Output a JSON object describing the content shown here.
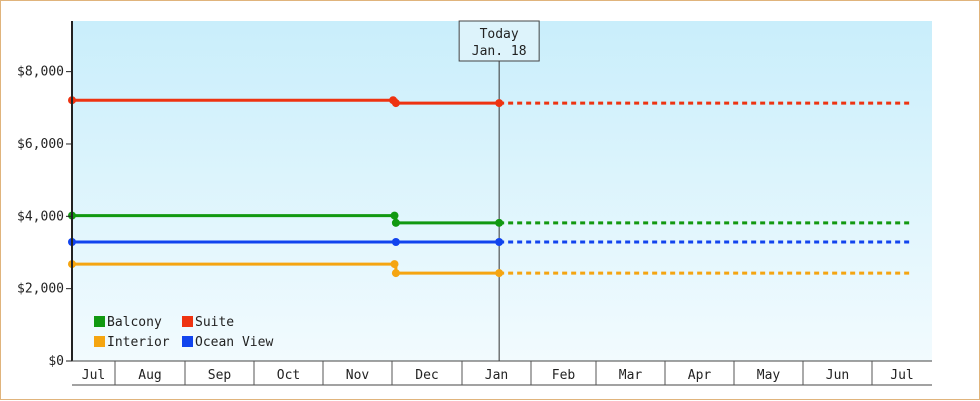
{
  "chart_data": {
    "type": "line",
    "title": "",
    "xlabel": "",
    "ylabel": "",
    "x_categories": [
      "Jul",
      "Aug",
      "Sep",
      "Oct",
      "Nov",
      "Dec",
      "Jan",
      "Feb",
      "Mar",
      "Apr",
      "May",
      "Jun",
      "Jul"
    ],
    "ylim": [
      0,
      9400
    ],
    "y_ticks": [
      0,
      2000,
      4000,
      6000,
      8000
    ],
    "y_tick_labels": [
      "$0",
      "$2,000",
      "$4,000",
      "$6,000",
      "$8,000"
    ],
    "grid": false,
    "today": {
      "line1": "Today",
      "line2": "Jan. 18",
      "x": 6.35
    },
    "x_end": 12.6,
    "legend": {
      "position": "bottom-left"
    },
    "series": [
      {
        "name": "Balcony",
        "color": "#119911",
        "points": [
          {
            "x": 0.0,
            "y": 4020
          },
          {
            "x": 4.85,
            "y": 4020
          },
          {
            "x": 4.87,
            "y": 3820
          },
          {
            "x": 6.35,
            "y": 3820
          }
        ],
        "forecast": 3820
      },
      {
        "name": "Suite",
        "color": "#ee3311",
        "points": [
          {
            "x": 0.0,
            "y": 7210
          },
          {
            "x": 4.83,
            "y": 7210
          },
          {
            "x": 4.87,
            "y": 7130
          },
          {
            "x": 6.35,
            "y": 7130
          }
        ],
        "forecast": 7130
      },
      {
        "name": "Interior",
        "color": "#f5a511",
        "points": [
          {
            "x": 0.0,
            "y": 2680
          },
          {
            "x": 4.85,
            "y": 2680
          },
          {
            "x": 4.87,
            "y": 2430
          },
          {
            "x": 6.35,
            "y": 2430
          }
        ],
        "forecast": 2430
      },
      {
        "name": "Ocean View",
        "color": "#1144ee",
        "points": [
          {
            "x": 0.0,
            "y": 3290
          },
          {
            "x": 4.87,
            "y": 3290
          },
          {
            "x": 6.35,
            "y": 3290
          }
        ],
        "forecast": 3290
      }
    ]
  }
}
